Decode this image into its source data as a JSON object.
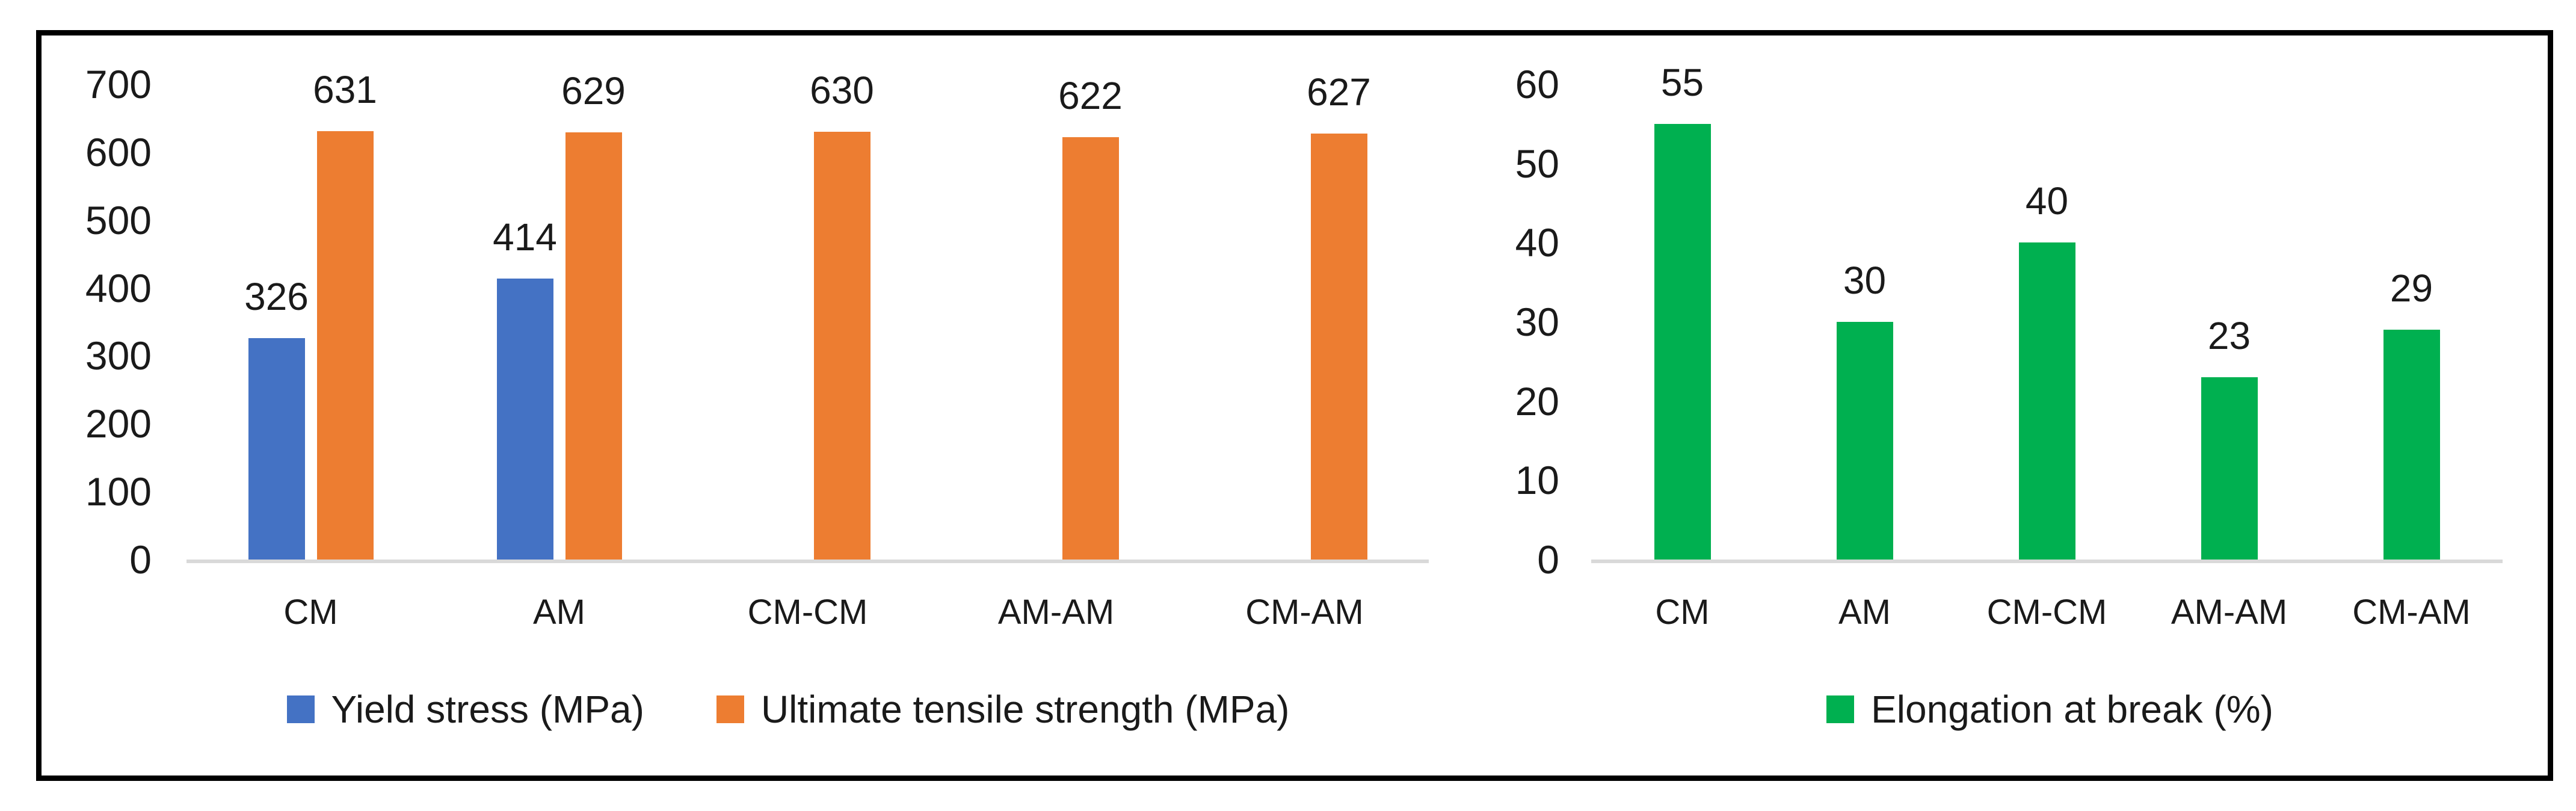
{
  "figure": {
    "background_color": "#ffffff",
    "border_color": "#000000",
    "axis_line_color": "#d9d9d9",
    "text_color": "#1a1a1a"
  },
  "chart_data": [
    {
      "type": "bar",
      "title": "",
      "xlabel": "",
      "ylabel": "",
      "categories": [
        "CM",
        "AM",
        "CM-CM",
        "AM-AM",
        "CM-AM"
      ],
      "series": [
        {
          "name": "Yield stress (MPa)",
          "color": "#4472c4",
          "values": [
            326,
            414,
            null,
            null,
            null
          ],
          "data_labels": [
            "326",
            "414",
            "",
            "",
            ""
          ]
        },
        {
          "name": "Ultimate tensile strength (MPa)",
          "color": "#ed7d31",
          "values": [
            631,
            629,
            630,
            622,
            627
          ],
          "data_labels": [
            "631",
            "629",
            "630",
            "622",
            "627"
          ]
        }
      ],
      "ylim": [
        0,
        700
      ],
      "ytick_step": 100,
      "yticks": [
        "0",
        "100",
        "200",
        "300",
        "400",
        "500",
        "600",
        "700"
      ],
      "grid": false,
      "data_labels_shown": true,
      "legend_position": "bottom"
    },
    {
      "type": "bar",
      "title": "",
      "xlabel": "",
      "ylabel": "",
      "categories": [
        "CM",
        "AM",
        "CM-CM",
        "AM-AM",
        "CM-AM"
      ],
      "series": [
        {
          "name": "Elongation at break (%)",
          "color": "#00b050",
          "values": [
            55,
            30,
            40,
            23,
            29
          ],
          "data_labels": [
            "55",
            "30",
            "40",
            "23",
            "29"
          ]
        }
      ],
      "ylim": [
        0,
        60
      ],
      "ytick_step": 10,
      "yticks": [
        "0",
        "10",
        "20",
        "30",
        "40",
        "50",
        "60"
      ],
      "grid": false,
      "data_labels_shown": true,
      "legend_position": "bottom"
    }
  ]
}
